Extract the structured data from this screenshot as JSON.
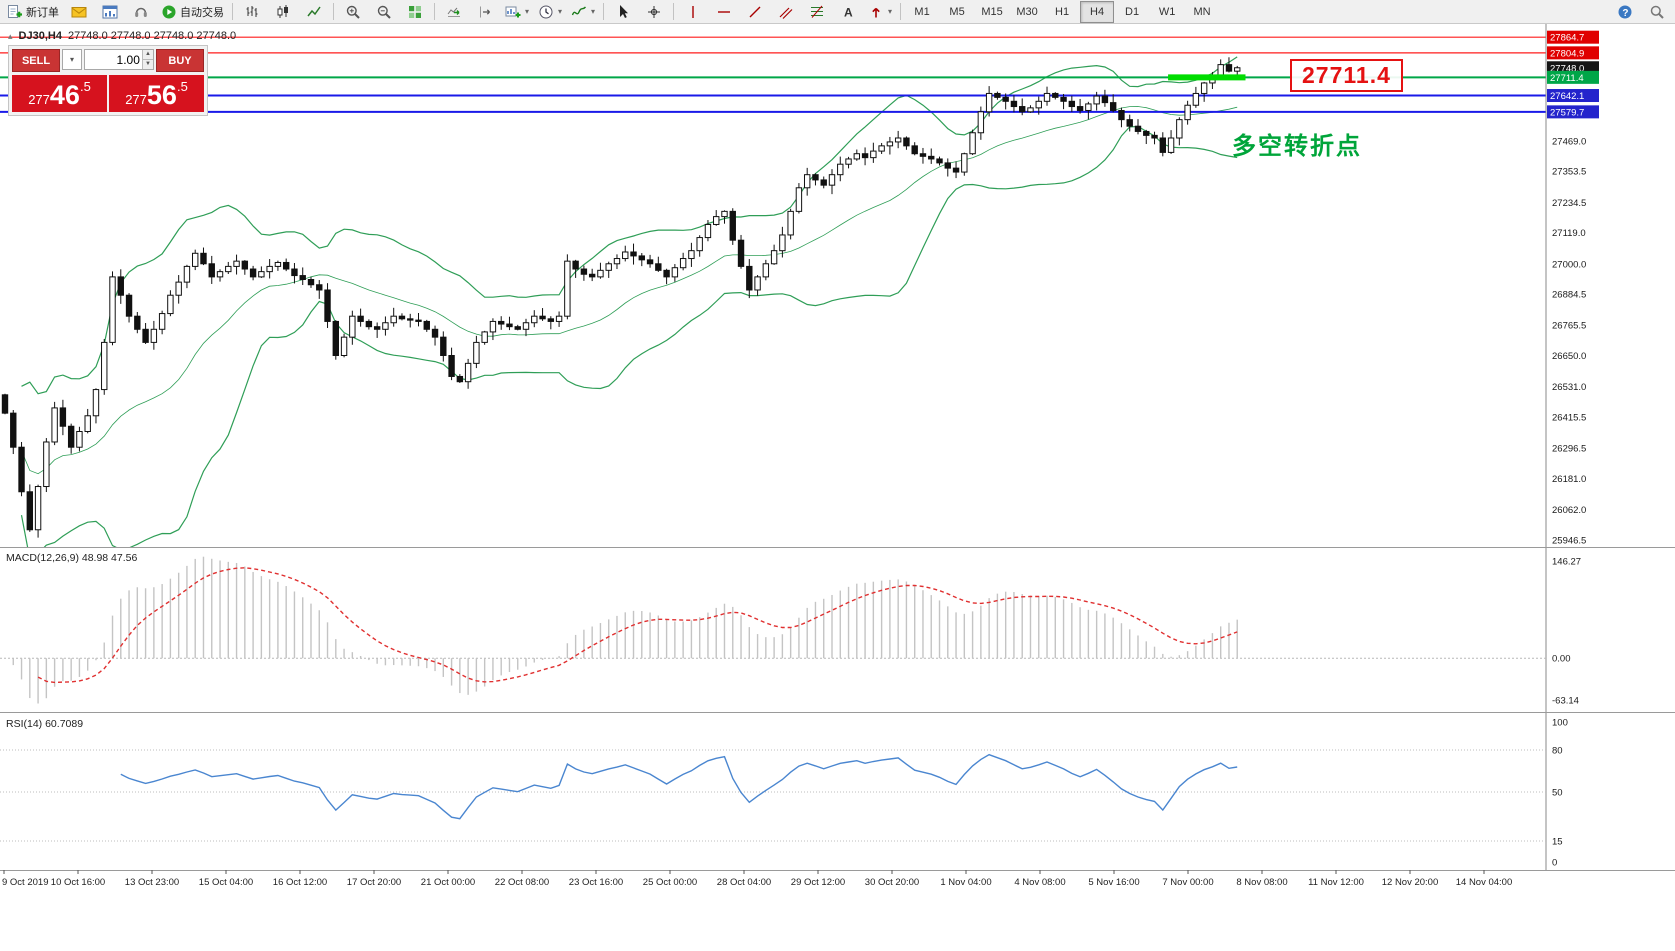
{
  "toolbar": {
    "items": [
      {
        "type": "button",
        "name": "new-order-button",
        "icon": "new-order-icon",
        "label": "新订单"
      },
      {
        "type": "button",
        "name": "mail-button",
        "icon": "mail-icon"
      },
      {
        "type": "button",
        "name": "market-watch-button",
        "icon": "chart-window-icon"
      },
      {
        "type": "button",
        "name": "support-button",
        "icon": "headset-icon"
      },
      {
        "type": "button",
        "name": "autotrading-button",
        "icon": "play-icon",
        "label": "自动交易"
      },
      {
        "type": "sep"
      },
      {
        "type": "button",
        "name": "bar-chart-button",
        "icon": "ohlc-bars-icon"
      },
      {
        "type": "button",
        "name": "candlestick-chart-button",
        "icon": "candles-icon"
      },
      {
        "type": "button",
        "name": "line-chart-button",
        "icon": "line-chart-icon"
      },
      {
        "type": "sep"
      },
      {
        "type": "button",
        "name": "zoom-in-button",
        "icon": "zoom-in-icon"
      },
      {
        "type": "button",
        "name": "zoom-out-button",
        "icon": "zoom-out-icon"
      },
      {
        "type": "button",
        "name": "tile-windows-button",
        "icon": "tile-windows-icon"
      },
      {
        "type": "sep"
      },
      {
        "type": "button",
        "name": "auto-scroll-button",
        "icon": "auto-scroll-icon"
      },
      {
        "type": "button",
        "name": "chart-shift-button",
        "icon": "chart-shift-icon"
      },
      {
        "type": "dropdown",
        "name": "new-chart-button",
        "icon": "new-chart-icon"
      },
      {
        "type": "dropdown",
        "name": "period-selector-button",
        "icon": "clock-icon"
      },
      {
        "type": "dropdown",
        "name": "indicators-button",
        "icon": "indicators-icon"
      },
      {
        "type": "sep"
      },
      {
        "type": "button",
        "name": "cursor-tool-button",
        "icon": "cursor-icon"
      },
      {
        "type": "button",
        "name": "crosshair-tool-button",
        "icon": "crosshair-icon"
      },
      {
        "type": "sep"
      },
      {
        "type": "button",
        "name": "vertical-line-tool",
        "icon": "vline-icon"
      },
      {
        "type": "button",
        "name": "horizontal-line-tool",
        "icon": "hline-icon"
      },
      {
        "type": "button",
        "name": "trendline-tool",
        "icon": "trendline-icon"
      },
      {
        "type": "button",
        "name": "channel-tool",
        "icon": "channel-icon"
      },
      {
        "type": "button",
        "name": "fibonacci-tool",
        "icon": "fibo-icon"
      },
      {
        "type": "button",
        "name": "text-tool",
        "icon": "text-icon"
      },
      {
        "type": "dropdown",
        "name": "arrows-tool",
        "icon": "arrow-icon"
      },
      {
        "type": "sep"
      },
      {
        "type": "tf",
        "name": "timeframe-m1",
        "label": "M1"
      },
      {
        "type": "tf",
        "name": "timeframe-m5",
        "label": "M5"
      },
      {
        "type": "tf",
        "name": "timeframe-m15",
        "label": "M15"
      },
      {
        "type": "tf",
        "name": "timeframe-m30",
        "label": "M30"
      },
      {
        "type": "tf",
        "name": "timeframe-h1",
        "label": "H1"
      },
      {
        "type": "tf",
        "name": "timeframe-h4",
        "label": "H4",
        "active": true
      },
      {
        "type": "tf",
        "name": "timeframe-d1",
        "label": "D1"
      },
      {
        "type": "tf",
        "name": "timeframe-w1",
        "label": "W1"
      },
      {
        "type": "tf",
        "name": "timeframe-mn",
        "label": "MN"
      }
    ],
    "right_items": [
      {
        "name": "help-button",
        "icon": "help-icon"
      },
      {
        "name": "search-button",
        "icon": "search-icon"
      }
    ]
  },
  "trade_panel": {
    "sell_label": "SELL",
    "buy_label": "BUY",
    "volume": "1.00",
    "sell_price": "27746.5",
    "buy_price": "27756.5"
  },
  "chart": {
    "symbol_title": "DJ30,H4",
    "ohlc_line": "27748.0 27748.0 27748.0 27748.0",
    "annotation": "多空转折点",
    "price_callout": "27711.4",
    "current_price": {
      "price": 27748.0,
      "label": "27748.0",
      "badge_color": "#151515"
    },
    "levels": [
      {
        "price": 27864.7,
        "label": "27864.7",
        "line_color": "#ff1c1c",
        "badge_color": "#e00000",
        "width": 1.2
      },
      {
        "price": 27804.9,
        "label": "27804.9",
        "line_color": "#ff1c1c",
        "badge_color": "#e00000",
        "width": 1.2
      },
      {
        "price": 27711.4,
        "label": "27711.4",
        "line_color": "#00a648",
        "badge_color": "#00a648",
        "width": 2
      },
      {
        "price": 27642.1,
        "label": "27642.1",
        "line_color": "#1a1ae8",
        "badge_color": "#2424cc",
        "width": 2
      },
      {
        "price": 27579.7,
        "label": "27579.7",
        "line_color": "#1a1ae8",
        "badge_color": "#2424cc",
        "width": 2
      }
    ],
    "highlight_segment": {
      "price": 27711.4,
      "from_bar": 141,
      "to_bar": 150,
      "color": "#00dd00"
    },
    "price_scale": [
      "27469.0",
      "27353.5",
      "27234.5",
      "27119.0",
      "27000.0",
      "26884.5",
      "26765.5",
      "26650.0",
      "26531.0",
      "26415.5",
      "26296.5",
      "26181.0",
      "26062.0",
      "25946.5"
    ]
  },
  "macd": {
    "label": "MACD(12,26,9) 48.98 47.56",
    "axis": [
      {
        "v": 146.27,
        "t": "146.27"
      },
      {
        "v": 0,
        "t": "0.00"
      },
      {
        "v": -63.14,
        "t": "-63.14"
      }
    ]
  },
  "rsi": {
    "label": "RSI(14) 60.7089",
    "axis": [
      {
        "v": 100,
        "t": "100"
      },
      {
        "v": 80,
        "t": "80"
      },
      {
        "v": 50,
        "t": "50"
      },
      {
        "v": 15,
        "t": "15"
      },
      {
        "v": 0,
        "t": "0"
      }
    ],
    "levels": [
      80,
      50,
      15
    ]
  },
  "time_axis": [
    "9 Oct 2019",
    "10 Oct 16:00",
    "13 Oct 23:00",
    "15 Oct 04:00",
    "16 Oct 12:00",
    "17 Oct 20:00",
    "21 Oct 00:00",
    "22 Oct 08:00",
    "23 Oct 16:00",
    "25 Oct 00:00",
    "28 Oct 04:00",
    "29 Oct 12:00",
    "30 Oct 20:00",
    "1 Nov 04:00",
    "4 Nov 08:00",
    "5 Nov 16:00",
    "7 Nov 00:00",
    "8 Nov 08:00",
    "11 Nov 12:00",
    "12 Nov 20:00",
    "14 Nov 04:00"
  ],
  "chart_data": {
    "type": "candlestick",
    "symbol": "DJ30",
    "timeframe": "H4",
    "title": "DJ30,H4 27748.0 27748.0 27748.0 27748.0",
    "y_range": [
      25920,
      27915
    ],
    "open_first": 26500,
    "closes": [
      26430,
      26300,
      26130,
      25985,
      26150,
      26320,
      26450,
      26380,
      26300,
      26360,
      26420,
      26520,
      26700,
      26950,
      26880,
      26800,
      26750,
      26700,
      26750,
      26810,
      26880,
      26930,
      26990,
      27040,
      27000,
      26950,
      26970,
      26990,
      27010,
      26980,
      26950,
      26970,
      26990,
      27005,
      26980,
      26955,
      26940,
      26920,
      26900,
      26780,
      26650,
      26720,
      26800,
      26780,
      26760,
      26750,
      26775,
      26800,
      26790,
      26785,
      26780,
      26750,
      26720,
      26650,
      26570,
      26550,
      26620,
      26700,
      26740,
      26780,
      26770,
      26760,
      26750,
      26775,
      26800,
      26790,
      26780,
      26800,
      27010,
      26980,
      26960,
      26950,
      26975,
      27000,
      27020,
      27045,
      27030,
      27015,
      27000,
      26975,
      26950,
      26985,
      27020,
      27050,
      27100,
      27150,
      27180,
      27200,
      27090,
      26990,
      26900,
      26950,
      27000,
      27050,
      27110,
      27200,
      27290,
      27340,
      27320,
      27300,
      27340,
      27380,
      27400,
      27420,
      27405,
      27430,
      27450,
      27465,
      27480,
      27450,
      27420,
      27410,
      27400,
      27385,
      27365,
      27350,
      27420,
      27500,
      27580,
      27650,
      27635,
      27620,
      27600,
      27580,
      27595,
      27620,
      27650,
      27635,
      27620,
      27600,
      27585,
      27610,
      27640,
      27615,
      27585,
      27550,
      27525,
      27505,
      27490,
      27480,
      27425,
      27480,
      27550,
      27605,
      27650,
      27690,
      27720,
      27760,
      27735,
      27748
    ],
    "overlays": {
      "bollinger": {
        "period": 20,
        "deviation": 2,
        "color": "#2f9e57"
      }
    },
    "h_lines": [
      27864.7,
      27804.9,
      27711.4,
      27642.1,
      27579.7
    ],
    "indicators": [
      {
        "name": "MACD",
        "params": [
          12,
          26,
          9
        ],
        "readout": [
          48.98,
          47.56
        ],
        "axis_range": [
          -63.14,
          146.27
        ]
      },
      {
        "name": "RSI",
        "params": [
          14
        ],
        "readout": 60.7089,
        "levels": [
          80,
          50,
          15
        ]
      }
    ]
  }
}
